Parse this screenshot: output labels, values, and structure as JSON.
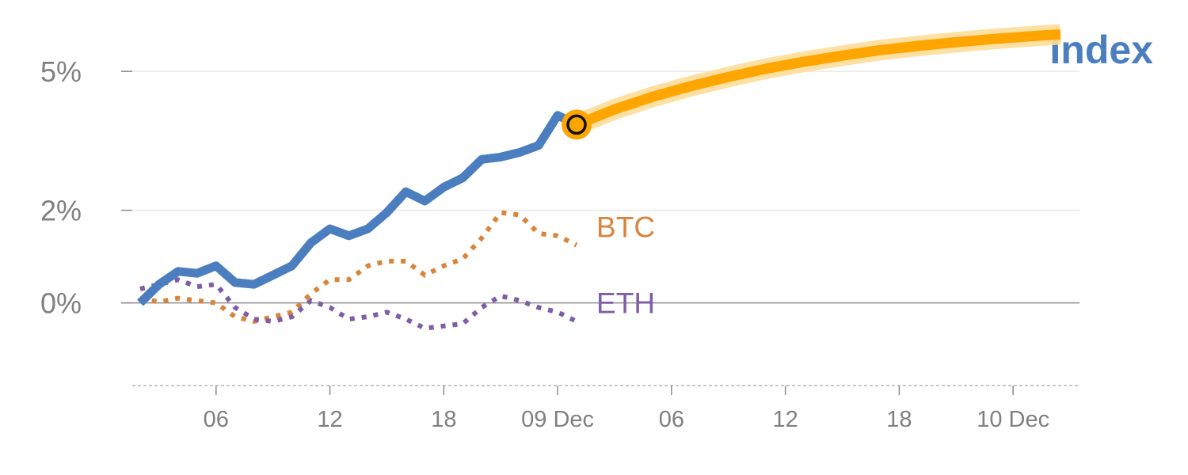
{
  "chart_data": {
    "type": "line",
    "title": "Index",
    "colors": {
      "index": "#4a7ebf",
      "btc": "#d9843b",
      "eth": "#7f5ca8",
      "projection": "#ffa500",
      "grid": "#e8e8e8",
      "zero": "#8c8c8c",
      "text": "#808080"
    },
    "y_ticks": [
      {
        "value": 5,
        "label": "5%"
      },
      {
        "value": 2,
        "label": "2%"
      },
      {
        "value": 0,
        "label": "0%"
      }
    ],
    "x_ticks": [
      {
        "x": 4,
        "label": "06"
      },
      {
        "x": 10,
        "label": "12"
      },
      {
        "x": 16,
        "label": "18"
      },
      {
        "x": 22,
        "label": "09 Dec"
      },
      {
        "x": 28,
        "label": "06"
      },
      {
        "x": 34,
        "label": "12"
      },
      {
        "x": 40,
        "label": "18"
      },
      {
        "x": 46,
        "label": "10 Dec"
      }
    ],
    "xlim": [
      -1,
      49.5
    ],
    "ylim": [
      -1.7,
      6.2
    ],
    "series": [
      {
        "key": "index",
        "style": "solid",
        "x": [
          0,
          1,
          2,
          3,
          4,
          5,
          6,
          7,
          8,
          9,
          10,
          11,
          12,
          13,
          14,
          15,
          16,
          17,
          18,
          19,
          20,
          21,
          22,
          23
        ],
        "values": [
          0.0,
          0.4,
          0.68,
          0.64,
          0.8,
          0.44,
          0.4,
          0.6,
          0.8,
          1.3,
          1.6,
          1.45,
          1.6,
          1.95,
          2.4,
          2.2,
          2.5,
          2.7,
          3.1,
          3.15,
          3.25,
          3.4,
          4.05,
          3.85
        ]
      },
      {
        "key": "btc",
        "name": "BTC",
        "style": "dotted",
        "x": [
          0,
          1,
          2,
          3,
          4,
          5,
          6,
          7,
          8,
          9,
          10,
          11,
          12,
          13,
          14,
          15,
          16,
          17,
          18,
          19,
          20,
          21,
          22,
          23
        ],
        "values": [
          0.1,
          0.02,
          0.1,
          0.05,
          0.0,
          -0.3,
          -0.4,
          -0.3,
          -0.2,
          0.2,
          0.5,
          0.5,
          0.8,
          0.9,
          0.9,
          0.6,
          0.8,
          0.95,
          1.4,
          1.95,
          1.9,
          1.5,
          1.45,
          1.25
        ]
      },
      {
        "key": "eth",
        "name": "ETH",
        "style": "dotted",
        "x": [
          0,
          1,
          2,
          3,
          4,
          5,
          6,
          7,
          8,
          9,
          10,
          11,
          12,
          13,
          14,
          15,
          16,
          17,
          18,
          19,
          20,
          21,
          22,
          23
        ],
        "values": [
          0.3,
          0.4,
          0.5,
          0.35,
          0.4,
          -0.1,
          -0.35,
          -0.4,
          -0.3,
          0.05,
          -0.1,
          -0.35,
          -0.3,
          -0.2,
          -0.35,
          -0.55,
          -0.5,
          -0.45,
          -0.1,
          0.15,
          0.05,
          -0.1,
          -0.2,
          -0.4
        ]
      },
      {
        "key": "projection",
        "style": "band",
        "x": [
          23,
          25,
          27,
          29,
          31,
          33,
          35,
          37,
          39,
          41,
          43,
          45,
          47,
          48.5
        ],
        "values": [
          3.85,
          4.18,
          4.45,
          4.68,
          4.88,
          5.06,
          5.21,
          5.34,
          5.46,
          5.55,
          5.63,
          5.7,
          5.76,
          5.8
        ]
      }
    ],
    "endpoint_marker": {
      "x": 23,
      "value": 3.85
    },
    "series_labels": [
      {
        "key": "btc",
        "text": "BTC"
      },
      {
        "key": "eth",
        "text": "ETH"
      }
    ]
  }
}
